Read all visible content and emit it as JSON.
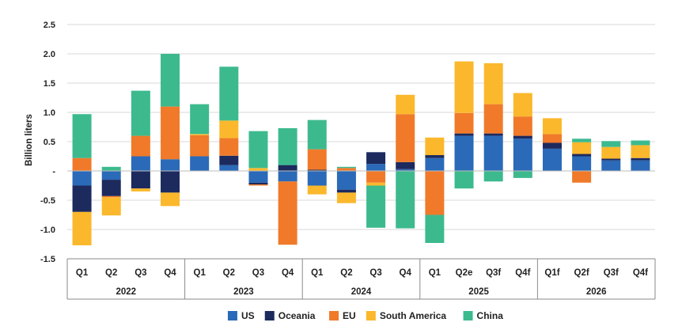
{
  "chart_data": {
    "type": "bar",
    "stacked": true,
    "ylabel": "Billion liters",
    "ylim": [
      -1.5,
      2.5
    ],
    "yticks": [
      "2.5",
      "2.0",
      "1.5",
      "1.0",
      "0.5",
      "-",
      "-0.5",
      "-1.0",
      "-1.5"
    ],
    "ytick_values": [
      2.5,
      2.0,
      1.5,
      1.0,
      0.5,
      0,
      -0.5,
      -1.0,
      -1.5
    ],
    "grid": true,
    "legend_position": "bottom-center",
    "groups": [
      {
        "label": "2022",
        "categories": [
          "Q1",
          "Q2",
          "Q3",
          "Q4"
        ]
      },
      {
        "label": "2023",
        "categories": [
          "Q1",
          "Q2",
          "Q3",
          "Q4"
        ]
      },
      {
        "label": "2024",
        "categories": [
          "Q1",
          "Q2",
          "Q3",
          "Q4"
        ]
      },
      {
        "label": "2025",
        "categories": [
          "Q1",
          "Q2e",
          "Q3f",
          "Q4f"
        ]
      },
      {
        "label": "2026",
        "categories": [
          "Q1f",
          "Q2f",
          "Q3f",
          "Q4f"
        ]
      }
    ],
    "series": [
      {
        "name": "US",
        "color": "#2a6ab8",
        "values": [
          -0.25,
          -0.15,
          0.25,
          0.2,
          0.25,
          0.1,
          -0.2,
          -0.18,
          -0.25,
          -0.32,
          0.12,
          0.03,
          0.22,
          0.6,
          0.6,
          0.55,
          0.38,
          0.25,
          0.18,
          0.18
        ]
      },
      {
        "name": "Oceania",
        "color": "#1c2a5e",
        "values": [
          -0.45,
          -0.28,
          -0.3,
          -0.37,
          0,
          0.16,
          -0.03,
          0.1,
          0.02,
          -0.05,
          0.2,
          0.12,
          0.05,
          0.04,
          0.04,
          0.05,
          0.1,
          0.04,
          0.03,
          0.04
        ]
      },
      {
        "name": "EU",
        "color": "#f07a2a",
        "values": [
          0.22,
          -0.02,
          0.35,
          0.9,
          0.36,
          0.3,
          -0.02,
          -1.08,
          0.35,
          0.05,
          -0.2,
          0.82,
          -0.75,
          0.35,
          0.5,
          0.33,
          0.15,
          -0.2,
          0,
          0
        ]
      },
      {
        "name": "South America",
        "color": "#fbb82c",
        "values": [
          -0.57,
          -0.31,
          -0.05,
          -0.23,
          0.02,
          0.3,
          0.05,
          0,
          -0.15,
          -0.18,
          -0.05,
          0.33,
          0.3,
          0.88,
          0.7,
          0.4,
          0.27,
          0.2,
          0.2,
          0.22
        ]
      },
      {
        "name": "China",
        "color": "#3cba8e",
        "values": [
          0.75,
          0.07,
          0.77,
          0.9,
          0.51,
          0.92,
          0.63,
          0.63,
          0.5,
          0.02,
          -0.72,
          -0.98,
          -0.48,
          -0.3,
          -0.18,
          -0.12,
          0,
          0.06,
          0.1,
          0.08
        ]
      }
    ]
  }
}
